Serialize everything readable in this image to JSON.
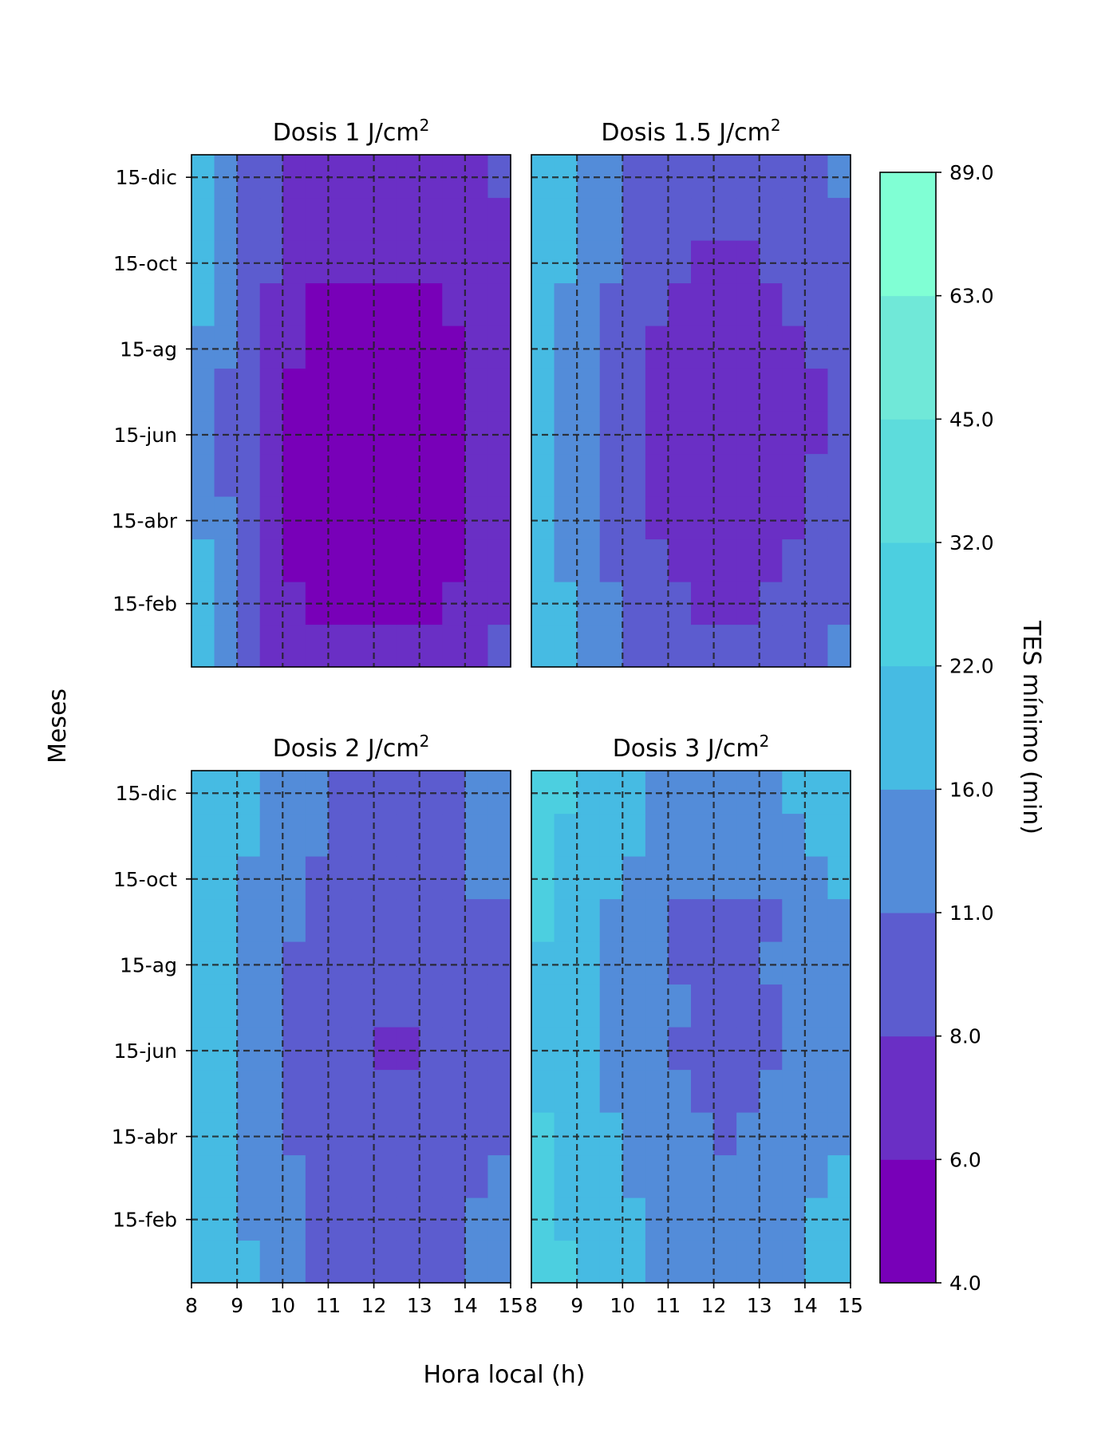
{
  "chart_data": {
    "type": "heatmap",
    "shared_xlabel": "Hora local (h)",
    "shared_ylabel": "Meses",
    "x_range": [
      8,
      15
    ],
    "x_ticks": [
      "8",
      "9",
      "10",
      "11",
      "12",
      "13",
      "14",
      "15"
    ],
    "y_ticks": [
      "15-dic",
      "15-oct",
      "15-ag",
      "15-jun",
      "15-abr",
      "15-feb"
    ],
    "y_tick_days": [
      349,
      288,
      227,
      166,
      105,
      46
    ],
    "y_range_days": [
      1,
      365
    ],
    "grid": "dashed",
    "panels": [
      {
        "title": "Dosis 1 J/cm²",
        "title_main": "Dosis 1 J/cm",
        "dose": 1,
        "hour_bins": [
          8.0,
          8.5,
          9.0,
          9.5,
          10.0,
          10.5,
          11.0,
          11.5,
          12.0,
          12.5,
          13.0,
          13.5,
          14.0,
          14.5,
          15.0
        ],
        "levels_by_month": [
          [
            4,
            3,
            2,
            1,
            1,
            1,
            1,
            1,
            1,
            1,
            1,
            1,
            1,
            2
          ],
          [
            4,
            3,
            2,
            1,
            1,
            0,
            0,
            0,
            0,
            0,
            0,
            1,
            1,
            1
          ],
          [
            4,
            3,
            2,
            1,
            0,
            0,
            0,
            0,
            0,
            0,
            0,
            0,
            1,
            1
          ],
          [
            3,
            3,
            2,
            1,
            0,
            0,
            0,
            0,
            0,
            0,
            0,
            0,
            1,
            1
          ],
          [
            3,
            2,
            2,
            1,
            0,
            0,
            0,
            0,
            0,
            0,
            0,
            0,
            1,
            1
          ],
          [
            3,
            2,
            2,
            1,
            0,
            0,
            0,
            0,
            0,
            0,
            0,
            0,
            1,
            1
          ],
          [
            3,
            2,
            2,
            1,
            0,
            0,
            0,
            0,
            0,
            0,
            0,
            0,
            1,
            1
          ],
          [
            3,
            3,
            2,
            1,
            1,
            0,
            0,
            0,
            0,
            0,
            0,
            0,
            1,
            1
          ],
          [
            4,
            3,
            2,
            1,
            1,
            0,
            0,
            0,
            0,
            0,
            0,
            1,
            1,
            1
          ],
          [
            4,
            3,
            2,
            2,
            1,
            1,
            1,
            1,
            1,
            1,
            1,
            1,
            1,
            1
          ],
          [
            4,
            3,
            2,
            2,
            1,
            1,
            1,
            1,
            1,
            1,
            1,
            1,
            1,
            1
          ],
          [
            4,
            3,
            2,
            2,
            1,
            1,
            1,
            1,
            1,
            1,
            1,
            1,
            1,
            2
          ]
        ]
      },
      {
        "title": "Dosis 1.5 J/cm²",
        "title_main": "Dosis 1.5 J/cm",
        "dose": 1.5,
        "hour_bins": [
          8.0,
          8.5,
          9.0,
          9.5,
          10.0,
          10.5,
          11.0,
          11.5,
          12.0,
          12.5,
          13.0,
          13.5,
          14.0,
          14.5,
          15.0
        ],
        "levels_by_month": [
          [
            4,
            4,
            3,
            3,
            2,
            2,
            2,
            2,
            2,
            2,
            2,
            2,
            2,
            3
          ],
          [
            4,
            4,
            3,
            3,
            2,
            2,
            2,
            1,
            1,
            1,
            2,
            2,
            2,
            2
          ],
          [
            4,
            3,
            3,
            2,
            2,
            2,
            1,
            1,
            1,
            1,
            1,
            2,
            2,
            2
          ],
          [
            4,
            3,
            3,
            2,
            2,
            1,
            1,
            1,
            1,
            1,
            1,
            1,
            2,
            2
          ],
          [
            4,
            3,
            3,
            2,
            2,
            1,
            1,
            1,
            1,
            1,
            1,
            1,
            2,
            2
          ],
          [
            4,
            3,
            3,
            2,
            2,
            1,
            1,
            1,
            1,
            1,
            1,
            1,
            1,
            2
          ],
          [
            4,
            3,
            3,
            2,
            2,
            1,
            1,
            1,
            1,
            1,
            1,
            1,
            1,
            2
          ],
          [
            4,
            3,
            3,
            2,
            2,
            1,
            1,
            1,
            1,
            1,
            1,
            1,
            2,
            2
          ],
          [
            4,
            3,
            3,
            2,
            2,
            2,
            1,
            1,
            1,
            1,
            1,
            2,
            2,
            2
          ],
          [
            4,
            4,
            3,
            3,
            2,
            2,
            2,
            1,
            1,
            1,
            2,
            2,
            2,
            2
          ],
          [
            4,
            4,
            3,
            3,
            2,
            2,
            2,
            2,
            2,
            2,
            2,
            2,
            2,
            2
          ],
          [
            4,
            4,
            3,
            3,
            2,
            2,
            2,
            2,
            2,
            2,
            2,
            2,
            2,
            3
          ]
        ]
      },
      {
        "title": "Dosis 2 J/cm²",
        "title_main": "Dosis 2 J/cm",
        "dose": 2,
        "hour_bins": [
          8.0,
          8.5,
          9.0,
          9.5,
          10.0,
          10.5,
          11.0,
          11.5,
          12.0,
          12.5,
          13.0,
          13.5,
          14.0,
          14.5,
          15.0
        ],
        "levels_by_month": [
          [
            4,
            4,
            4,
            3,
            3,
            2,
            2,
            2,
            2,
            2,
            2,
            2,
            3,
            3
          ],
          [
            4,
            4,
            3,
            3,
            3,
            2,
            2,
            2,
            2,
            2,
            2,
            2,
            3,
            3
          ],
          [
            4,
            4,
            3,
            3,
            3,
            2,
            2,
            2,
            2,
            2,
            2,
            2,
            2,
            3
          ],
          [
            4,
            4,
            3,
            3,
            2,
            2,
            2,
            2,
            2,
            2,
            2,
            2,
            2,
            2
          ],
          [
            4,
            4,
            3,
            3,
            2,
            2,
            2,
            2,
            2,
            2,
            2,
            2,
            2,
            2
          ],
          [
            4,
            4,
            3,
            3,
            2,
            2,
            2,
            2,
            1,
            1,
            2,
            2,
            2,
            2
          ],
          [
            4,
            4,
            3,
            3,
            2,
            2,
            2,
            2,
            2,
            2,
            2,
            2,
            2,
            2
          ],
          [
            4,
            4,
            3,
            3,
            2,
            2,
            2,
            2,
            2,
            2,
            2,
            2,
            2,
            2
          ],
          [
            4,
            4,
            3,
            3,
            3,
            2,
            2,
            2,
            2,
            2,
            2,
            2,
            2,
            2
          ],
          [
            4,
            4,
            3,
            3,
            3,
            2,
            2,
            2,
            2,
            2,
            2,
            2,
            3,
            3
          ],
          [
            4,
            4,
            4,
            3,
            3,
            3,
            2,
            2,
            2,
            2,
            2,
            2,
            3,
            3
          ],
          [
            4,
            4,
            4,
            3,
            3,
            3,
            2,
            2,
            2,
            2,
            2,
            2,
            3,
            3
          ]
        ]
      },
      {
        "title": "Dosis 3 J/cm²",
        "title_main": "Dosis 3 J/cm",
        "dose": 3,
        "hour_bins": [
          8.0,
          8.5,
          9.0,
          9.5,
          10.0,
          10.5,
          11.0,
          11.5,
          12.0,
          12.5,
          13.0,
          13.5,
          14.0,
          14.5,
          15.0
        ],
        "levels_by_month": [
          [
            5,
            5,
            4,
            4,
            4,
            3,
            3,
            3,
            3,
            3,
            3,
            3,
            4,
            4
          ],
          [
            5,
            4,
            4,
            4,
            4,
            3,
            3,
            3,
            3,
            3,
            3,
            3,
            4,
            4
          ],
          [
            5,
            4,
            4,
            4,
            3,
            3,
            3,
            3,
            3,
            3,
            3,
            3,
            3,
            4
          ],
          [
            5,
            4,
            4,
            4,
            3,
            3,
            3,
            3,
            2,
            3,
            3,
            3,
            3,
            3
          ],
          [
            4,
            4,
            4,
            3,
            3,
            3,
            3,
            2,
            2,
            2,
            3,
            3,
            3,
            3
          ],
          [
            4,
            4,
            4,
            3,
            3,
            3,
            2,
            2,
            2,
            2,
            2,
            3,
            3,
            3
          ],
          [
            4,
            4,
            4,
            3,
            3,
            3,
            3,
            2,
            2,
            2,
            2,
            3,
            3,
            3
          ],
          [
            4,
            4,
            4,
            3,
            3,
            3,
            2,
            2,
            2,
            2,
            3,
            3,
            3,
            3
          ],
          [
            5,
            4,
            4,
            3,
            3,
            3,
            2,
            2,
            2,
            2,
            2,
            3,
            3,
            3
          ],
          [
            5,
            4,
            4,
            4,
            3,
            3,
            3,
            3,
            3,
            3,
            3,
            3,
            3,
            4
          ],
          [
            5,
            4,
            4,
            4,
            4,
            3,
            3,
            3,
            3,
            3,
            3,
            3,
            4,
            4
          ],
          [
            5,
            5,
            4,
            4,
            4,
            3,
            3,
            3,
            3,
            3,
            3,
            4,
            4,
            4
          ]
        ]
      }
    ],
    "colorbar": {
      "label": "TES mínimo (min)",
      "boundaries": [
        4.0,
        6.0,
        8.0,
        11.0,
        16.0,
        22.0,
        32.0,
        45.0,
        63.0,
        89.0
      ],
      "tick_labels": [
        "4.0",
        "6.0",
        "8.0",
        "11.0",
        "16.0",
        "22.0",
        "32.0",
        "45.0",
        "63.0",
        "89.0"
      ],
      "colors": [
        "#7800b8",
        "#6a2fc5",
        "#5c5ccf",
        "#538cd9",
        "#46bbe3",
        "#4ccfe0",
        "#5ddcdc",
        "#70e8d8",
        "#80ffd4"
      ]
    }
  }
}
